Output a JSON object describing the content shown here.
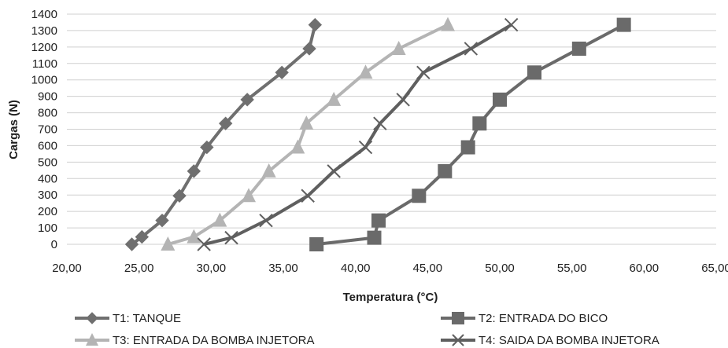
{
  "chart_data": {
    "type": "line",
    "title": "",
    "xlabel": "Temperatura (°C)",
    "ylabel": "Cargas (N)",
    "xlim": [
      20,
      65
    ],
    "ylim": [
      0,
      1400
    ],
    "x_ticks": [
      "20,00",
      "25,00",
      "30,00",
      "35,00",
      "40,00",
      "45,00",
      "50,00",
      "55,00",
      "60,00",
      "65,00"
    ],
    "y_ticks": [
      "0",
      "100",
      "200",
      "300",
      "400",
      "500",
      "600",
      "700",
      "800",
      "900",
      "1000",
      "1100",
      "1200",
      "1300",
      "1400"
    ],
    "grid": "horizontal",
    "legend_position": "bottom",
    "series": [
      {
        "name": "T1: TANQUE",
        "marker": "diamond",
        "color": "#6f6f6f",
        "points": [
          [
            24.5,
            0
          ],
          [
            25.2,
            45
          ],
          [
            26.6,
            145
          ],
          [
            27.8,
            295
          ],
          [
            28.8,
            445
          ],
          [
            29.7,
            590
          ],
          [
            31.0,
            735
          ],
          [
            32.5,
            880
          ],
          [
            34.9,
            1045
          ],
          [
            36.8,
            1190
          ],
          [
            37.2,
            1335
          ]
        ]
      },
      {
        "name": "T2: ENTRADA DO BICO",
        "marker": "square",
        "color": "#6a6a6a",
        "points": [
          [
            37.3,
            0
          ],
          [
            41.3,
            40
          ],
          [
            41.6,
            145
          ],
          [
            44.4,
            295
          ],
          [
            46.2,
            445
          ],
          [
            47.8,
            590
          ],
          [
            48.6,
            735
          ],
          [
            50.0,
            880
          ],
          [
            52.4,
            1045
          ],
          [
            55.5,
            1190
          ],
          [
            58.6,
            1335
          ]
        ]
      },
      {
        "name": "T3: ENTRADA DA BOMBA INJETORA",
        "marker": "triangle",
        "color": "#b4b4b4",
        "points": [
          [
            27.0,
            0
          ],
          [
            28.8,
            45
          ],
          [
            30.6,
            145
          ],
          [
            32.6,
            295
          ],
          [
            34.0,
            445
          ],
          [
            36.0,
            590
          ],
          [
            36.6,
            735
          ],
          [
            38.5,
            880
          ],
          [
            40.7,
            1045
          ],
          [
            43.0,
            1190
          ],
          [
            46.4,
            1335
          ]
        ]
      },
      {
        "name": "T4: SAIDA DA BOMBA INJETORA",
        "marker": "x",
        "color": "#5f5f5f",
        "points": [
          [
            29.5,
            0
          ],
          [
            31.4,
            40
          ],
          [
            33.8,
            145
          ],
          [
            36.7,
            295
          ],
          [
            38.5,
            445
          ],
          [
            40.7,
            590
          ],
          [
            41.7,
            735
          ],
          [
            43.3,
            880
          ],
          [
            44.7,
            1045
          ],
          [
            48.0,
            1190
          ],
          [
            50.8,
            1335
          ]
        ]
      }
    ]
  }
}
